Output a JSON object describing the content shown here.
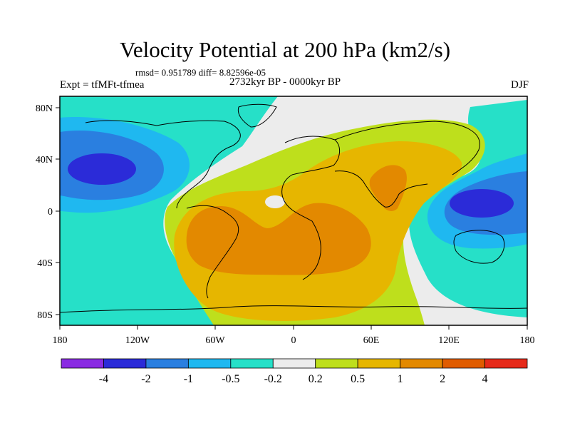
{
  "title": "Velocity Potential at 200 hPa (km2/s)",
  "stats": "rmsd= 0.951789 diff= 8.82596e-05",
  "experiment": "Expt = tfMFt-tfmea",
  "period": "2732kyr BP - 0000kyr BP",
  "season": "DJF",
  "axes": {
    "x_ticks": [
      "180",
      "120W",
      "60W",
      "0",
      "60E",
      "120E",
      "180"
    ],
    "y_ticks": [
      "80N",
      "40N",
      "0",
      "40S",
      "80S"
    ]
  },
  "colorbar": {
    "colors": [
      "#8a2be2",
      "#2b2bd8",
      "#2a7fe0",
      "#1fb8f0",
      "#26e0c8",
      "#ececec",
      "#bedf1c",
      "#e6b600",
      "#e38900",
      "#e05c00",
      "#e62a1a"
    ],
    "labels": [
      "-4",
      "-2",
      "-1",
      "-0.5",
      "-0.2",
      "0.2",
      "0.5",
      "1",
      "2",
      "4"
    ]
  },
  "legend_colors": {
    "land_outline": "#000000",
    "neutral": "#ececec"
  }
}
